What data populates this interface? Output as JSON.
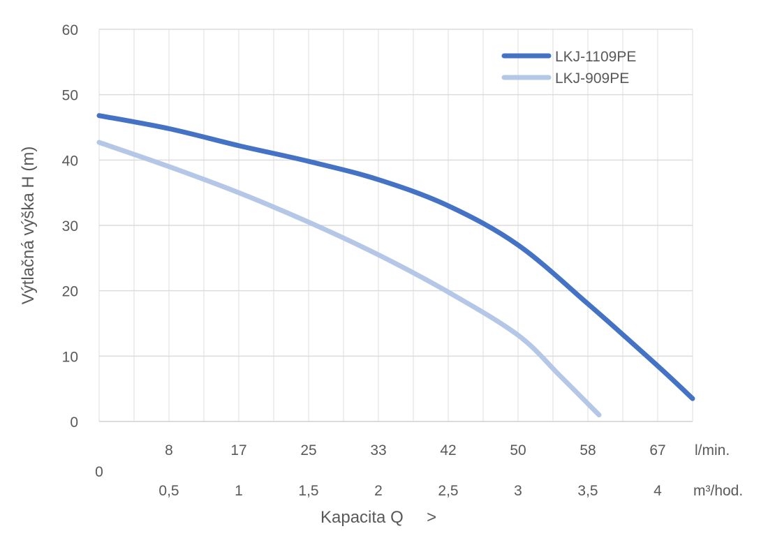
{
  "chart_data": {
    "type": "line",
    "ylabel": "Výtlačná výška H (m)",
    "xlabel": "Kapacita Q     >",
    "ylim": [
      0,
      60
    ],
    "y_ticks": [
      "0",
      "10",
      "20",
      "30",
      "40",
      "50",
      "60"
    ],
    "xlim_m3h": [
      0,
      4.25
    ],
    "x_origin_label": "0",
    "x_ticks_lmin": [
      "8",
      "17",
      "25",
      "33",
      "42",
      "50",
      "58",
      "67"
    ],
    "x_unit_lmin": "l/min.",
    "x_ticks_m3h": [
      "0,5",
      "1",
      "1,5",
      "2",
      "2,5",
      "3",
      "3,5",
      "4"
    ],
    "x_unit_m3h": "m³/hod.",
    "grid": true,
    "legend_position": "top-right",
    "series": [
      {
        "name": "LKJ-1109PE",
        "color": "#4472C4",
        "x": [
          0,
          0.5,
          1,
          1.5,
          2,
          2.5,
          3,
          3.5,
          4,
          4.25
        ],
        "y": [
          46.8,
          44.8,
          42.2,
          39.8,
          37,
          33,
          27,
          18,
          8.5,
          3.5
        ]
      },
      {
        "name": "LKJ-909PE",
        "color": "#B4C7E7",
        "x": [
          0,
          0.5,
          1,
          1.5,
          2,
          2.5,
          3,
          3.3,
          3.58
        ],
        "y": [
          42.7,
          39,
          35,
          30.5,
          25.5,
          19.8,
          13.2,
          7,
          1
        ]
      }
    ]
  }
}
